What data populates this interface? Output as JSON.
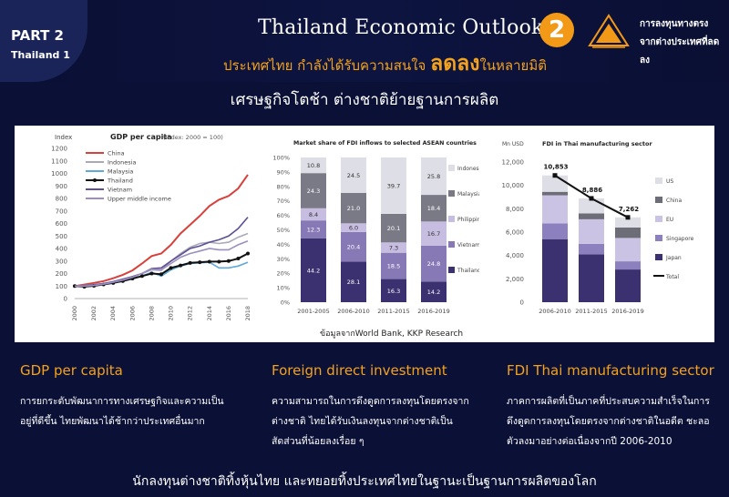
{
  "header": {
    "part_title": "PART 2",
    "part_sub": "Thailand 1",
    "main_title": "Thailand Economic Outlook",
    "subtitle_pre": "ประเทศไทย กำลังได้รับความสนใจ ",
    "subtitle_big": "ลดลง",
    "subtitle_post": "ในหลายมิติ",
    "badge_number": "2",
    "badge_line1": "การลงทุนทางตรง",
    "badge_line2": "จากต่างประเทศที่ลดลง",
    "accent": "#f29a17"
  },
  "section_title": "เศรษฐกิจโตช้า ต่างชาติย้ายฐานการผลิต",
  "source_note": "ข้อมูลจากWorld Bank, KKP Research",
  "chart_data": [
    {
      "type": "line",
      "title": "GDP per capita",
      "subtitle": "(Index: 2000 = 100)",
      "ylabel": "Index",
      "ylim": [
        0,
        1200
      ],
      "yticks": [
        "0",
        "100",
        "200",
        "300",
        "400",
        "500",
        "600",
        "700",
        "800",
        "900",
        "1000",
        "1100",
        "1200"
      ],
      "x": [
        "2000",
        "2001",
        "2002",
        "2003",
        "2004",
        "2005",
        "2006",
        "2007",
        "2008",
        "2009",
        "2010",
        "2011",
        "2012",
        "2013",
        "2014",
        "2015",
        "2016",
        "2017",
        "2018"
      ],
      "xticks": [
        "2000",
        "2002",
        "2004",
        "2006",
        "2008",
        "2010",
        "2012",
        "2014",
        "2016",
        "2018"
      ],
      "series": [
        {
          "name": "China",
          "color": "#d9403a",
          "values": [
            100,
            112,
            124,
            140,
            162,
            190,
            225,
            280,
            340,
            360,
            430,
            520,
            590,
            660,
            740,
            790,
            820,
            880,
            990
          ]
        },
        {
          "name": "Indonesia",
          "color": "#a9a9b8",
          "values": [
            100,
            105,
            112,
            120,
            132,
            150,
            175,
            200,
            230,
            225,
            300,
            360,
            410,
            440,
            450,
            440,
            450,
            490,
            520
          ]
        },
        {
          "name": "Malaysia",
          "color": "#5fa8d8",
          "values": [
            100,
            100,
            106,
            112,
            124,
            140,
            158,
            180,
            210,
            180,
            230,
            260,
            280,
            285,
            290,
            245,
            245,
            260,
            290
          ]
        },
        {
          "name": "Thailand",
          "color": "#111111",
          "values": [
            100,
            95,
            102,
            113,
            125,
            140,
            160,
            180,
            200,
            195,
            245,
            265,
            285,
            290,
            295,
            295,
            300,
            320,
            360
          ]
        },
        {
          "name": "Vietnam",
          "color": "#5e4f96",
          "values": [
            100,
            104,
            110,
            120,
            135,
            155,
            175,
            200,
            240,
            245,
            300,
            350,
            400,
            420,
            450,
            470,
            500,
            560,
            650
          ]
        },
        {
          "name": "Upper middle income",
          "color": "#9c8fbf",
          "values": [
            100,
            100,
            105,
            115,
            130,
            148,
            170,
            200,
            235,
            230,
            280,
            330,
            360,
            380,
            400,
            390,
            390,
            430,
            460
          ]
        }
      ]
    },
    {
      "type": "bar",
      "title": "Market share of FDI inflows to selected ASEAN countries",
      "ylim": [
        0,
        100
      ],
      "yticks": [
        "0%",
        "10%",
        "20%",
        "30%",
        "40%",
        "50%",
        "60%",
        "70%",
        "80%",
        "90%",
        "100%"
      ],
      "categories": [
        "2001-2005",
        "2006-2010",
        "2011-2015",
        "2016-2019"
      ],
      "series": [
        {
          "name": "Thailand",
          "color": "#3b3170",
          "values": [
            44.2,
            28.1,
            16.3,
            14.2
          ],
          "labels": [
            "44.2",
            "28.1",
            "16.3",
            "14.2"
          ]
        },
        {
          "name": "Vietnam",
          "color": "#8779b5",
          "values": [
            12.3,
            20.4,
            18.5,
            24.8
          ],
          "labels": [
            "12.3",
            "20.4",
            "18.5",
            "24.8"
          ]
        },
        {
          "name": "Philippines",
          "color": "#c6bde0",
          "values": [
            8.4,
            6.0,
            7.3,
            16.7
          ],
          "labels": [
            "8.4",
            "6.0",
            "7.3",
            "16.7"
          ]
        },
        {
          "name": "Malaysia",
          "color": "#7a7a86",
          "values": [
            24.3,
            21.0,
            20.1,
            18.4
          ],
          "labels": [
            "24.3",
            "21.0",
            "20.1",
            "18.4"
          ]
        },
        {
          "name": "Indonesia",
          "color": "#dedee6",
          "values": [
            10.8,
            24.5,
            39.7,
            25.8
          ],
          "labels": [
            "10.8",
            "24.5",
            "39.7",
            "25.8"
          ]
        }
      ]
    },
    {
      "type": "bar",
      "title": "FDI in Thai manufacturing sector",
      "ylabel": "Mn USD",
      "ylim": [
        0,
        12000
      ],
      "yticks": [
        "0",
        "2,000",
        "4,000",
        "6,000",
        "8,000",
        "10,000",
        "12,000"
      ],
      "categories": [
        "2006-2010",
        "2011-2015",
        "2016-2019"
      ],
      "series": [
        {
          "name": "Japan",
          "color": "#3b3170",
          "values": [
            5400,
            4100,
            2800
          ]
        },
        {
          "name": "Singapore",
          "color": "#8c80bf",
          "values": [
            1350,
            900,
            700
          ]
        },
        {
          "name": "EU",
          "color": "#cbc3e3",
          "values": [
            2400,
            2100,
            2000
          ]
        },
        {
          "name": "China",
          "color": "#6d6d78",
          "values": [
            300,
            500,
            900
          ]
        },
        {
          "name": "US",
          "color": "#dedee6",
          "values": [
            1403,
            1286,
            862
          ]
        }
      ],
      "total": {
        "name": "Total",
        "values": [
          10853,
          8886,
          7262
        ],
        "labels": [
          "10,853",
          "8,886",
          "7,262"
        ]
      }
    }
  ],
  "columns": [
    {
      "title": "GDP per capita",
      "text": "การยกระดับพัฒนาการทางเศรษฐกิจและความเป็นอยู่ที่ดีขึ้น ไทยพัฒนาได้ช้ากว่าประเทศอื่นมาก"
    },
    {
      "title": "Foreign direct investment",
      "text": "ความสามารถในการดึงดูดการลงทุนโดยตรงจากต่างชาติ ไทยได้รับเงินลงทุนจากต่างชาติเป็นสัดส่วนที่น้อยลงเรื่อย ๆ"
    },
    {
      "title": "FDI Thai manufacturing sector",
      "text": "ภาคการผลิตที่เป็นภาคที่ประสบความสำเร็จในการดึงดูดการลงทุนโดยตรงจากต่างชาติในอดีต ชะลอตัวลงมาอย่างต่อเนื่องจากปี 2006-2010"
    }
  ],
  "bottom_text": "นักลงทุนต่างชาติทิ้งหุ้นไทย และทยอยทิ้งประเทศไทยในฐานะเป็นฐานการผลิตของโลก"
}
